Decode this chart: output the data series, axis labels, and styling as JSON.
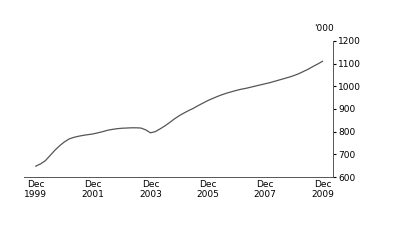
{
  "ylabel_top": "'000",
  "ylim": [
    600,
    1200
  ],
  "yticks": [
    600,
    700,
    800,
    900,
    1000,
    1100,
    1200
  ],
  "xtick_labels": [
    "Dec\n1999",
    "Dec\n2001",
    "Dec\n2003",
    "Dec\n2005",
    "Dec\n2007",
    "Dec\n2009"
  ],
  "xtick_positions": [
    1999.917,
    2001.917,
    2003.917,
    2005.917,
    2007.917,
    2009.917
  ],
  "xlim": [
    1999.5,
    2010.3
  ],
  "line_color": "#555555",
  "line_width": 0.9,
  "background_color": "#ffffff",
  "x": [
    1999.917,
    2000.083,
    2000.25,
    2000.417,
    2000.583,
    2000.75,
    2000.917,
    2001.083,
    2001.25,
    2001.417,
    2001.583,
    2001.75,
    2001.917,
    2002.083,
    2002.25,
    2002.417,
    2002.583,
    2002.75,
    2002.917,
    2003.083,
    2003.25,
    2003.417,
    2003.583,
    2003.75,
    2003.917,
    2004.083,
    2004.25,
    2004.417,
    2004.583,
    2004.75,
    2004.917,
    2005.083,
    2005.25,
    2005.417,
    2005.583,
    2005.75,
    2005.917,
    2006.083,
    2006.25,
    2006.417,
    2006.583,
    2006.75,
    2006.917,
    2007.083,
    2007.25,
    2007.417,
    2007.583,
    2007.75,
    2007.917,
    2008.083,
    2008.25,
    2008.417,
    2008.583,
    2008.75,
    2008.917,
    2009.083,
    2009.25,
    2009.417,
    2009.583,
    2009.75,
    2009.917
  ],
  "y": [
    648,
    658,
    672,
    695,
    718,
    738,
    755,
    768,
    775,
    780,
    784,
    787,
    790,
    795,
    800,
    806,
    810,
    813,
    815,
    816,
    817,
    817,
    816,
    808,
    795,
    800,
    812,
    825,
    840,
    856,
    870,
    882,
    893,
    903,
    915,
    926,
    937,
    946,
    955,
    963,
    970,
    976,
    982,
    987,
    991,
    996,
    1001,
    1006,
    1011,
    1016,
    1022,
    1028,
    1034,
    1040,
    1047,
    1055,
    1065,
    1075,
    1087,
    1098,
    1110
  ]
}
